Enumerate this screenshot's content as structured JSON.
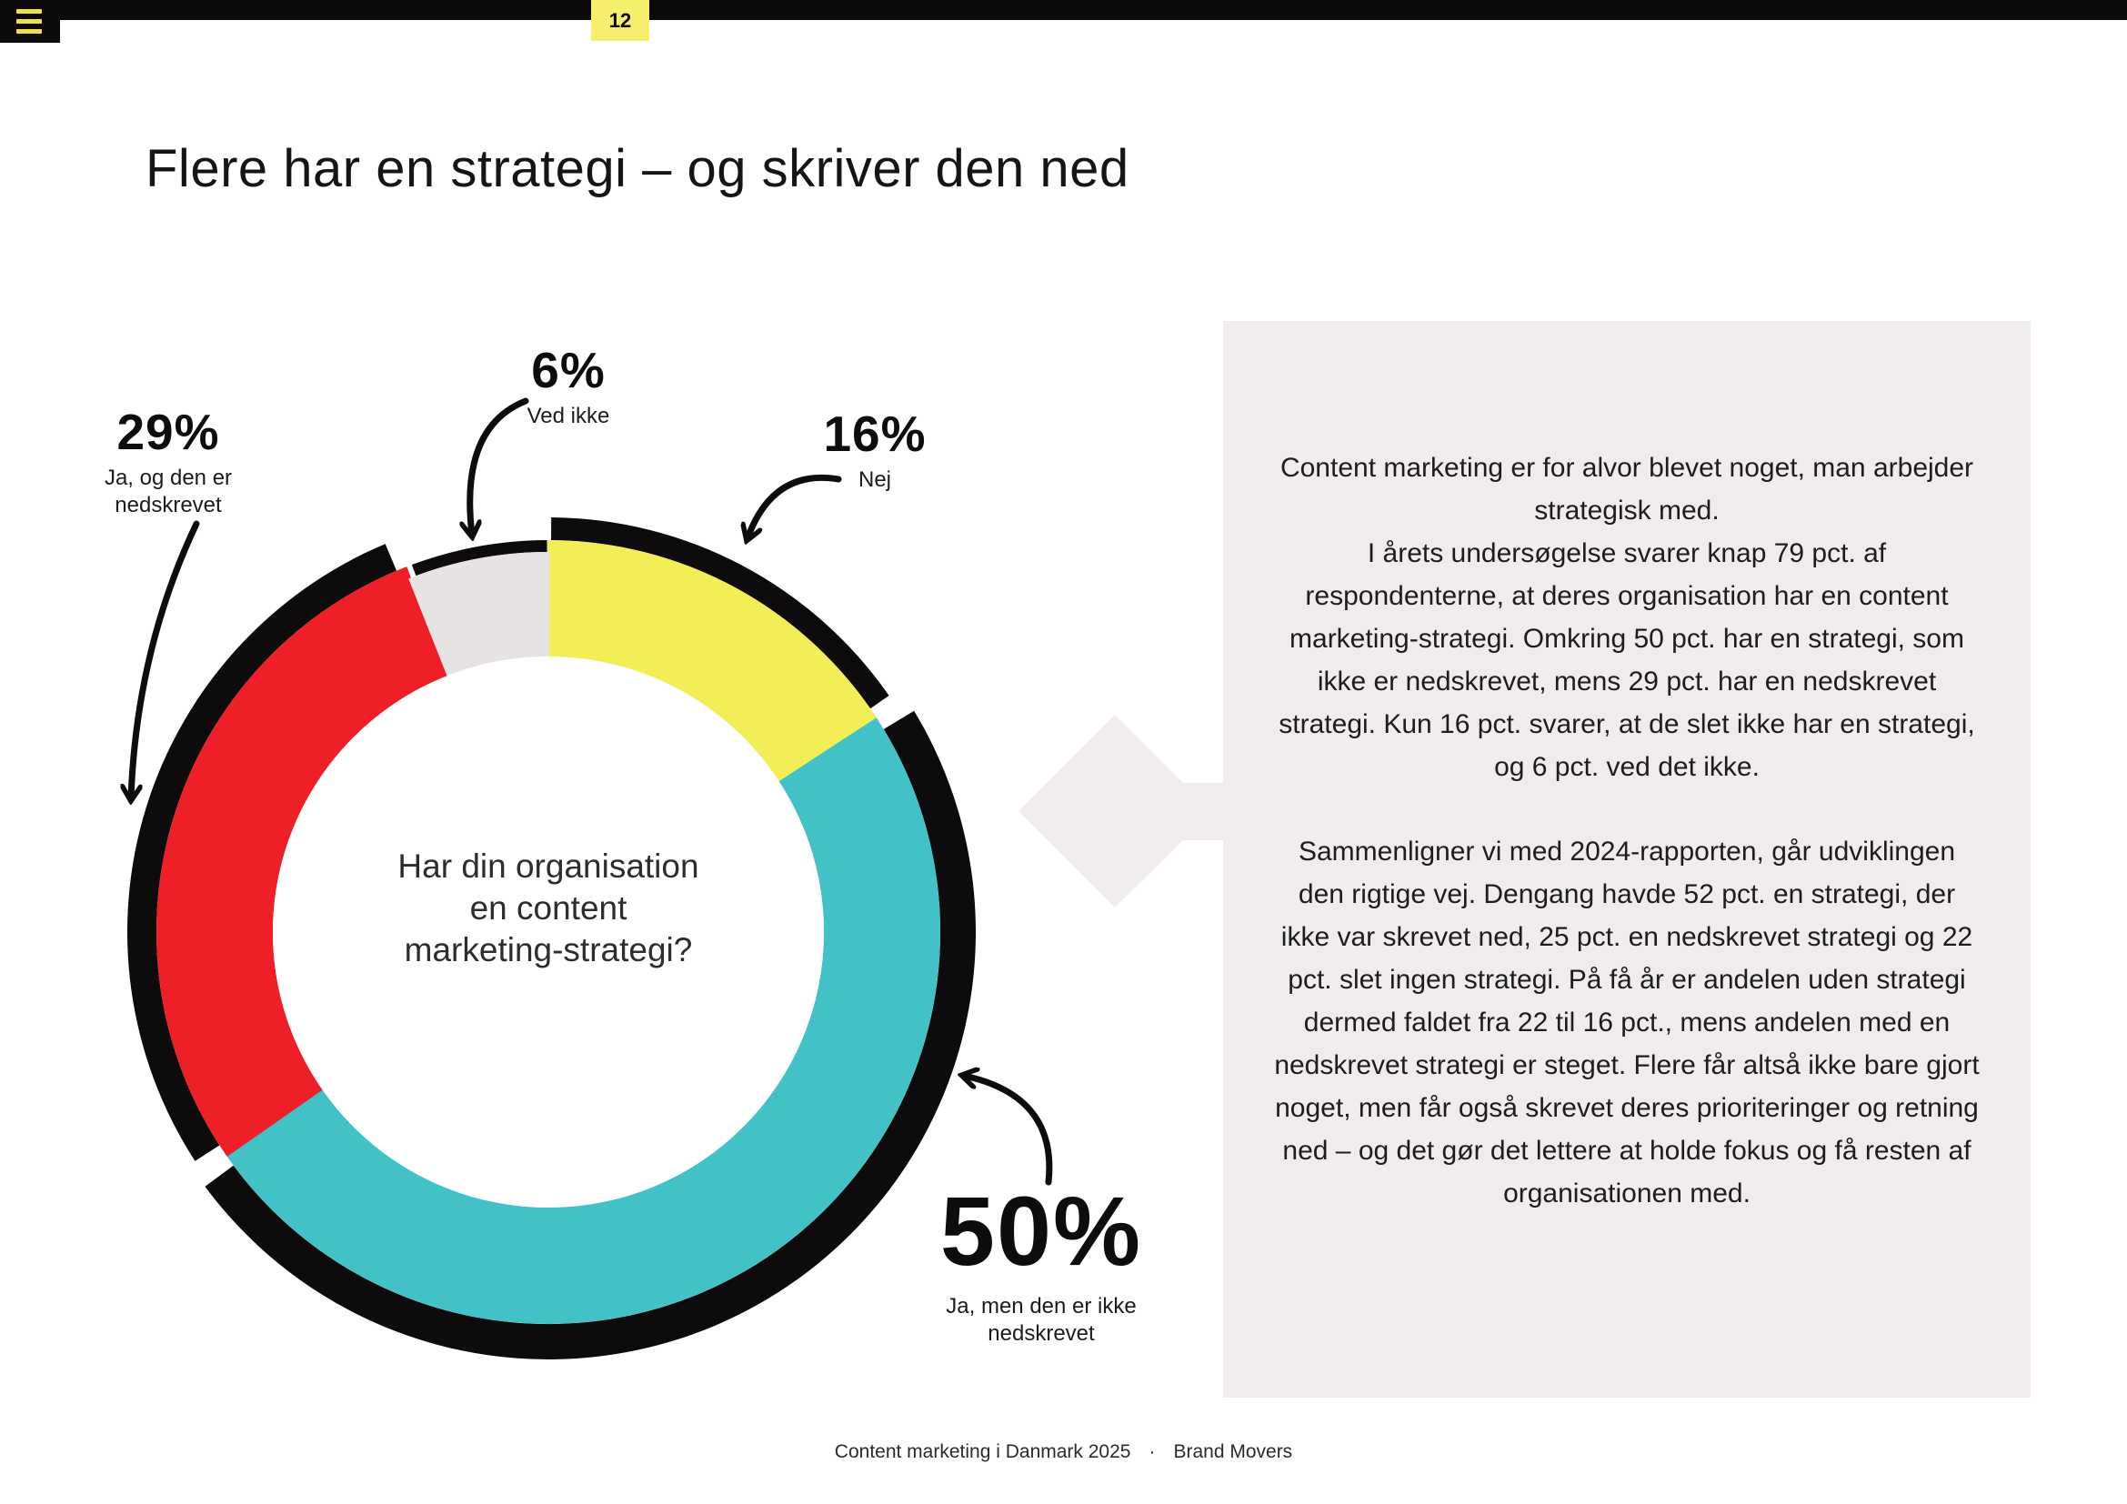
{
  "topbar": {
    "menu_icon": "hamburger-icon",
    "page_number": "12",
    "bar_color": "#0d0a0a",
    "tab_color": "#f6ef6e"
  },
  "title": "Flere har en strategi – og skriver den ned",
  "chart_data": {
    "type": "pie",
    "variant": "donut",
    "title": "Har din organisation en content marketing-strategi?",
    "unit": "%",
    "start_angle_deg": 0,
    "direction": "clockwise",
    "ring_color": "#0d0b0b",
    "segments": [
      {
        "id": "nej",
        "label": "Nej",
        "value": 16,
        "color": "#f3ee55"
      },
      {
        "id": "ja-ikke-nedskrevet",
        "label": "Ja, men den er ikke nedskrevet",
        "value": 50,
        "color": "#42c2c6"
      },
      {
        "id": "ja-nedskrevet",
        "label": "Ja, og den er nedskrevet",
        "value": 29,
        "color": "#ef1f28"
      },
      {
        "id": "ved-ikke",
        "label": "Ved ikke",
        "value": 6,
        "color": "#e7e3e2"
      }
    ]
  },
  "center_question": "Har din organisation\nen content\nmarketing-strategi?",
  "callouts": {
    "c29": {
      "value": "29%",
      "line1": "Ja, og den er",
      "line2": "nedskrevet"
    },
    "c6": {
      "value": "6%",
      "line1": "Ved ikke",
      "line2": ""
    },
    "c16": {
      "value": "16%",
      "line1": "Nej",
      "line2": ""
    },
    "c50": {
      "value": "50%",
      "line1": "Ja, men den er ikke",
      "line2": "nedskrevet"
    }
  },
  "panel": {
    "bg_color": "#efeceb",
    "paragraphs": [
      "Content marketing er for alvor blevet noget, man arbejder strategisk med.\nI årets undersøgelse svarer knap 79 pct. af respondenterne, at deres organisation har en content marketing-strategi. Omkring 50 pct. har en strategi, som ikke er nedskrevet, mens 29 pct. har en nedskrevet strategi. Kun 16 pct. svarer, at de slet ikke har en strategi, og 6 pct. ved det ikke.",
      "Sammenligner vi med 2024-rapporten, går udviklingen den rigtige vej. Dengang havde 52 pct. en strategi, der ikke var skrevet ned, 25 pct. en nedskrevet strategi og 22 pct. slet ingen strategi. På få år er andelen uden strategi dermed faldet fra 22 til 16 pct., mens andelen med en nedskrevet strategi er steget. Flere får altså ikke bare gjort noget, men får også skrevet deres prioriteringer og retning ned – og det gør det lettere at holde fokus og få resten af organisationen med."
    ]
  },
  "footer": {
    "left": "Content marketing i Danmark 2025",
    "separator": "·",
    "right": "Brand Movers"
  }
}
